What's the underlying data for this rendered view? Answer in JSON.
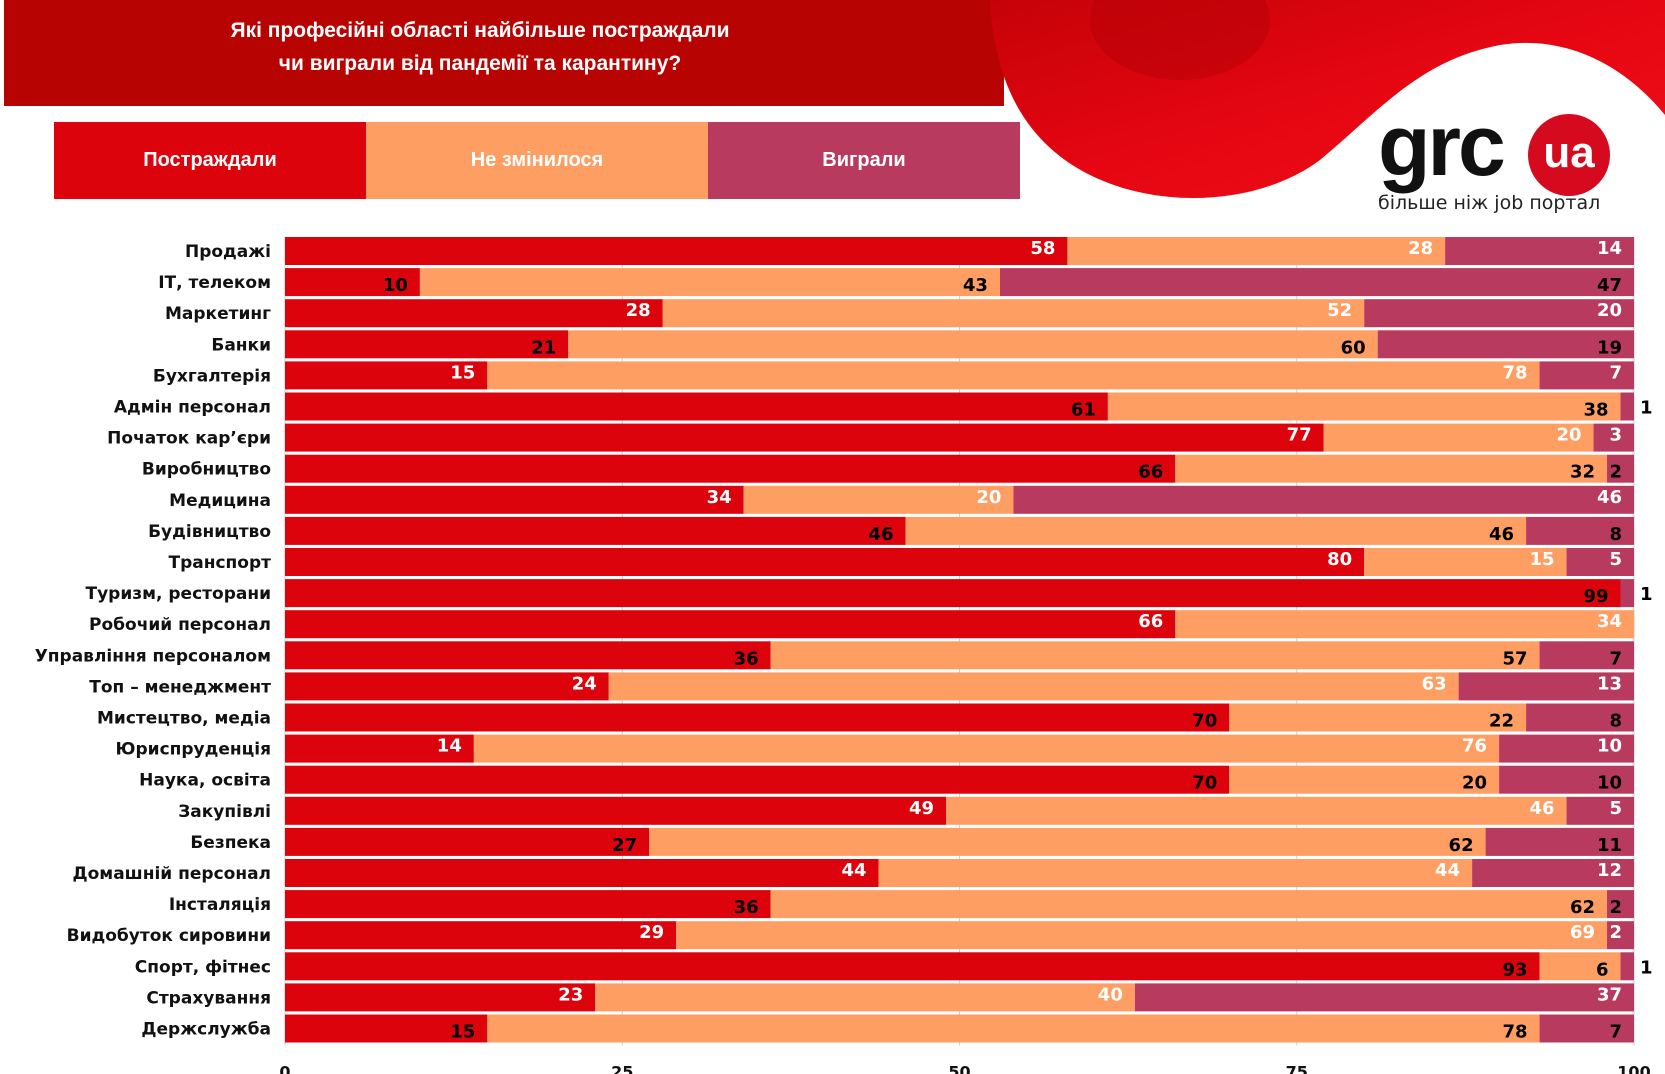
{
  "header": {
    "title_line1": "Які професійні області найбільше постраждали",
    "title_line2": "чи виграли від пандемії та карантину?"
  },
  "logo": {
    "brand": "grc",
    "badge": "ua",
    "tagline": "більше ніж job портал"
  },
  "colors": {
    "header_red": "#b80303",
    "suffered": "#dc030c",
    "unchanged": "#ff9e63",
    "won": "#b93a5f",
    "logo_red": "#d60a1e"
  },
  "legend": [
    {
      "label": "Постраждали",
      "color": "#dc030c"
    },
    {
      "label": "Не змінилося",
      "color": "#ff9e63"
    },
    {
      "label": "Виграли",
      "color": "#b93a5f"
    }
  ],
  "chart_data": {
    "type": "bar",
    "orientation": "horizontal",
    "stacked": true,
    "title": "Які професійні області найбільше постраждали чи виграли від пандемії та карантину?",
    "xlabel": "",
    "ylabel": "",
    "xlim": [
      0,
      100
    ],
    "x_ticks": [
      0,
      25,
      50,
      75,
      100
    ],
    "grid": true,
    "legend_position": "top-left",
    "categories": [
      "Продажі",
      "ІТ, телеком",
      "Маркетинг",
      "Банки",
      "Бухгалтерія",
      "Адмін персонал",
      "Початок кар’єри",
      "Виробництво",
      "Медицина",
      "Будівництво",
      "Транспорт",
      "Туризм, ресторани",
      "Робочий  персонал",
      "Управління персоналом",
      "Топ – менеджмент",
      "Мистецтво, медіа",
      "Юриспруденція",
      "Наука, освіта",
      "Закупівлі",
      "Безпека",
      "Домашній персонал",
      "Інсталяція",
      "Видобуток сировини",
      "Спорт, фітнес",
      "Страхування",
      "Держслужба"
    ],
    "series": [
      {
        "name": "Постраждали",
        "color": "#dc030c",
        "values": [
          58,
          10,
          28,
          21,
          15,
          61,
          77,
          66,
          34,
          46,
          80,
          99,
          66,
          36,
          24,
          70,
          14,
          70,
          49,
          27,
          44,
          36,
          29,
          93,
          23,
          15
        ],
        "label_colors": [
          "w",
          "b",
          "w",
          "b",
          "w",
          "b",
          "w",
          "b",
          "w",
          "b",
          "w",
          "b",
          "w",
          "b",
          "w",
          "b",
          "w",
          "b",
          "w",
          "b",
          "w",
          "b",
          "w",
          "b",
          "w",
          "b"
        ]
      },
      {
        "name": "Не змінилося",
        "color": "#ff9e63",
        "values": [
          28,
          43,
          52,
          60,
          78,
          38,
          20,
          32,
          20,
          46,
          15,
          0,
          34,
          57,
          63,
          22,
          76,
          20,
          46,
          62,
          44,
          62,
          69,
          6,
          40,
          78
        ],
        "label_colors": [
          "w",
          "b",
          "w",
          "b",
          "w",
          "b",
          "w",
          "b",
          "w",
          "b",
          "w",
          "b",
          "w",
          "b",
          "w",
          "b",
          "w",
          "b",
          "w",
          "b",
          "w",
          "b",
          "w",
          "b",
          "w",
          "b"
        ]
      },
      {
        "name": "Виграли",
        "color": "#b93a5f",
        "values": [
          14,
          47,
          20,
          19,
          7,
          1,
          3,
          2,
          46,
          8,
          5,
          1,
          0,
          7,
          13,
          8,
          10,
          10,
          5,
          11,
          12,
          2,
          2,
          1,
          37,
          7
        ],
        "label_colors": [
          "w",
          "b",
          "w",
          "b",
          "w",
          "b",
          "w",
          "b",
          "w",
          "b",
          "w",
          "b",
          "w",
          "b",
          "w",
          "b",
          "w",
          "b",
          "w",
          "b",
          "w",
          "b",
          "w",
          "b",
          "w",
          "b"
        ]
      }
    ],
    "outside_labels": [
      {
        "category": "Адмін персонал",
        "value": 1
      },
      {
        "category": "Туризм, ресторани",
        "value": 1
      },
      {
        "category": "Спорт, фітнес",
        "value": 1
      }
    ]
  }
}
